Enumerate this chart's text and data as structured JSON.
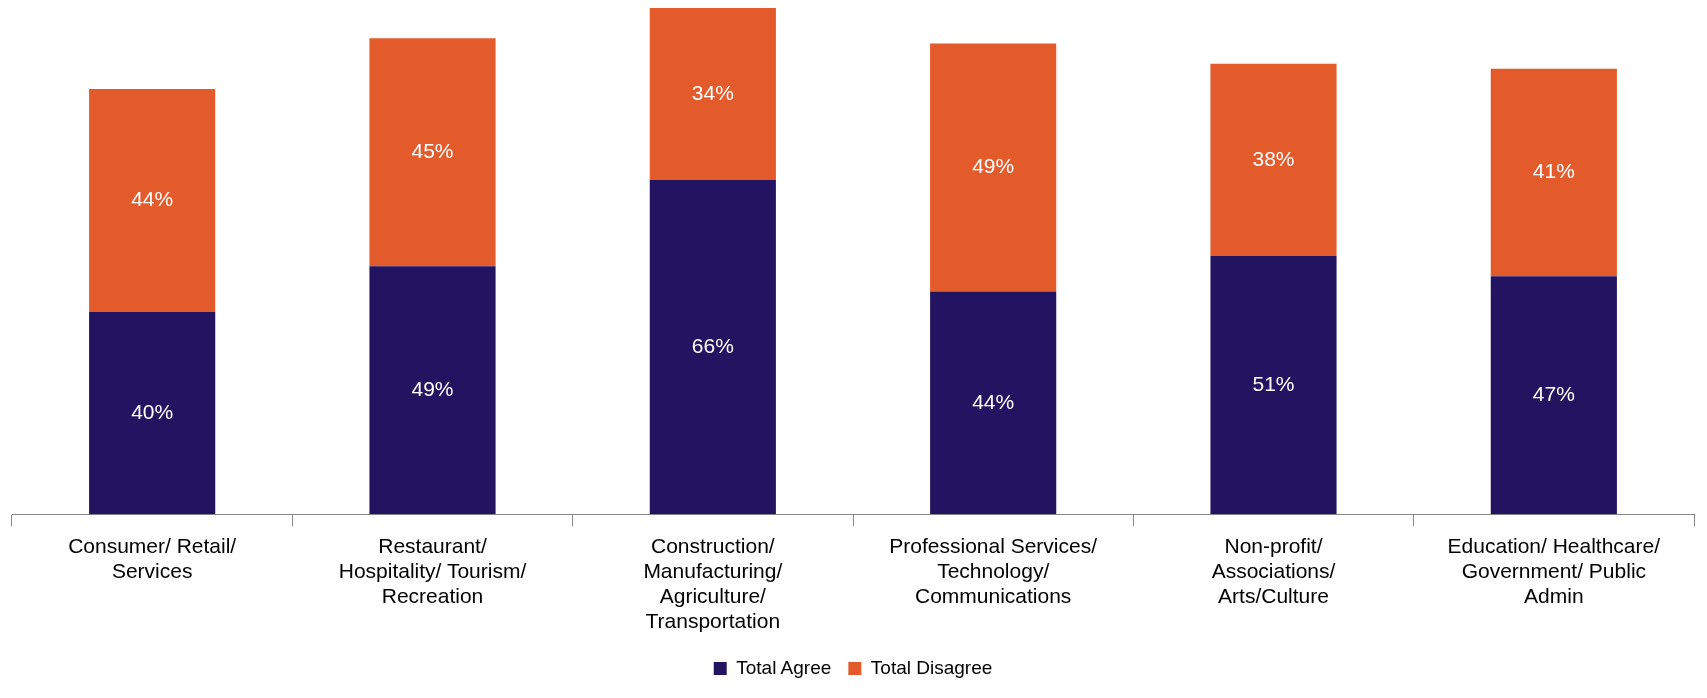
{
  "chart_data": {
    "type": "bar",
    "stacked": true,
    "legend": "bottom",
    "categories": [
      "Consumer/ Retail/ Services",
      "Restaurant/ Hospitality/ Tourism/ Recreation",
      "Construction/ Manufacturing/ Agriculture/ Transportation",
      "Professional Services/ Technology/ Communications",
      "Non-profit/ Associations/ Arts/Culture",
      "Education/ Healthcare/ Government/ Public Admin"
    ],
    "series": [
      {
        "name": "Total Agree",
        "color": "#231462",
        "values": [
          40,
          49,
          66,
          44,
          51,
          47
        ],
        "value_labels": [
          "40%",
          "49%",
          "66%",
          "44%",
          "51%",
          "47%"
        ]
      },
      {
        "name": "Total Disagree",
        "color": "#e35a2b",
        "values": [
          44,
          45,
          34,
          49,
          38,
          41
        ],
        "value_labels": [
          "44%",
          "45%",
          "34%",
          "49%",
          "38%",
          "41%"
        ]
      }
    ]
  }
}
